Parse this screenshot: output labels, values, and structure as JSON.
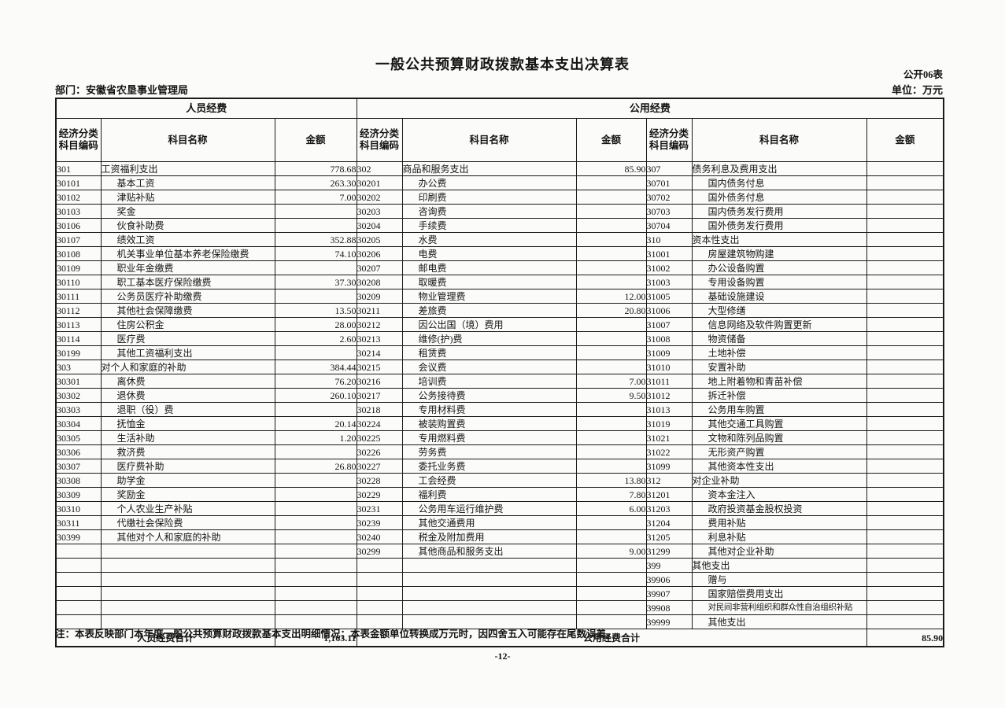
{
  "page": {
    "title": "一般公共预算财政拨款基本支出决算表",
    "form_no": "公开06表",
    "department": "部门：安徽省农垦事业管理局",
    "unit_label": "单位：万元",
    "note": "注：本表反映部门本年度一般公共预算财政拨款基本支出明细情况；本表金额单位转换成万元时，因四舍五入可能存在尾数误差。",
    "page_number": "-12-"
  },
  "table": {
    "group_headers": [
      "人员经费",
      "公用经费"
    ],
    "column_headers": [
      "经济分类\n科目编码",
      "科目名称",
      "金额"
    ],
    "rows": [
      [
        "301",
        "工资福利支出",
        "778.68",
        "302",
        "商品和服务支出",
        "85.90",
        "307",
        "债务利息及费用支出",
        ""
      ],
      [
        "30101",
        "基本工资",
        "263.30",
        "30201",
        "办公费",
        "",
        "30701",
        "国内债务付息",
        ""
      ],
      [
        "30102",
        "津贴补贴",
        "7.00",
        "30202",
        "印刷费",
        "",
        "30702",
        "国外债务付息",
        ""
      ],
      [
        "30103",
        "奖金",
        "",
        "30203",
        "咨询费",
        "",
        "30703",
        "国内债务发行费用",
        ""
      ],
      [
        "30106",
        "伙食补助费",
        "",
        "30204",
        "手续费",
        "",
        "30704",
        "国外债务发行费用",
        ""
      ],
      [
        "30107",
        "绩效工资",
        "352.88",
        "30205",
        "水费",
        "",
        "310",
        "资本性支出",
        ""
      ],
      [
        "30108",
        "机关事业单位基本养老保险缴费",
        "74.10",
        "30206",
        "电费",
        "",
        "31001",
        "房屋建筑物购建",
        ""
      ],
      [
        "30109",
        "职业年金缴费",
        "",
        "30207",
        "邮电费",
        "",
        "31002",
        "办公设备购置",
        ""
      ],
      [
        "30110",
        "职工基本医疗保险缴费",
        "37.30",
        "30208",
        "取暖费",
        "",
        "31003",
        "专用设备购置",
        ""
      ],
      [
        "30111",
        "公务员医疗补助缴费",
        "",
        "30209",
        "物业管理费",
        "12.00",
        "31005",
        "基础设施建设",
        ""
      ],
      [
        "30112",
        "其他社会保障缴费",
        "13.50",
        "30211",
        "差旅费",
        "20.80",
        "31006",
        "大型修缮",
        ""
      ],
      [
        "30113",
        "住房公积金",
        "28.00",
        "30212",
        "因公出国（境）费用",
        "",
        "31007",
        "信息网络及软件购置更新",
        ""
      ],
      [
        "30114",
        "医疗费",
        "2.60",
        "30213",
        "维修(护)费",
        "",
        "31008",
        "物资储备",
        ""
      ],
      [
        "30199",
        "其他工资福利支出",
        "",
        "30214",
        "租赁费",
        "",
        "31009",
        "土地补偿",
        ""
      ],
      [
        "303",
        "对个人和家庭的补助",
        "384.44",
        "30215",
        "会议费",
        "",
        "31010",
        "安置补助",
        ""
      ],
      [
        "30301",
        "离休费",
        "76.20",
        "30216",
        "培训费",
        "7.00",
        "31011",
        "地上附着物和青苗补偿",
        ""
      ],
      [
        "30302",
        "退休费",
        "260.10",
        "30217",
        "公务接待费",
        "9.50",
        "31012",
        "拆迁补偿",
        ""
      ],
      [
        "30303",
        "退职（役）费",
        "",
        "30218",
        "专用材料费",
        "",
        "31013",
        "公务用车购置",
        ""
      ],
      [
        "30304",
        "抚恤金",
        "20.14",
        "30224",
        "被装购置费",
        "",
        "31019",
        "其他交通工具购置",
        ""
      ],
      [
        "30305",
        "生活补助",
        "1.20",
        "30225",
        "专用燃料费",
        "",
        "31021",
        "文物和陈列品购置",
        ""
      ],
      [
        "30306",
        "救济费",
        "",
        "30226",
        "劳务费",
        "",
        "31022",
        "无形资产购置",
        ""
      ],
      [
        "30307",
        "医疗费补助",
        "26.80",
        "30227",
        "委托业务费",
        "",
        "31099",
        "其他资本性支出",
        ""
      ],
      [
        "30308",
        "助学金",
        "",
        "30228",
        "工会经费",
        "13.80",
        "312",
        "对企业补助",
        ""
      ],
      [
        "30309",
        "奖励金",
        "",
        "30229",
        "福利费",
        "7.80",
        "31201",
        "资本金注入",
        ""
      ],
      [
        "30310",
        "个人农业生产补贴",
        "",
        "30231",
        "公务用车运行维护费",
        "6.00",
        "31203",
        "政府投资基金股权投资",
        ""
      ],
      [
        "30311",
        "代缴社会保险费",
        "",
        "30239",
        "其他交通费用",
        "",
        "31204",
        "费用补贴",
        ""
      ],
      [
        "30399",
        "其他对个人和家庭的补助",
        "",
        "30240",
        "税金及附加费用",
        "",
        "31205",
        "利息补贴",
        ""
      ],
      [
        "",
        "",
        "",
        "30299",
        "其他商品和服务支出",
        "9.00",
        "31299",
        "其他对企业补助",
        ""
      ],
      [
        "",
        "",
        "",
        "",
        "",
        "",
        "399",
        "其他支出",
        ""
      ],
      [
        "",
        "",
        "",
        "",
        "",
        "",
        "39906",
        "赠与",
        ""
      ],
      [
        "",
        "",
        "",
        "",
        "",
        "",
        "39907",
        "国家赔偿费用支出",
        ""
      ],
      [
        "",
        "",
        "",
        "",
        "",
        "",
        "39908",
        "对民间非营利组织和群众性自治组织补贴",
        ""
      ],
      [
        "",
        "",
        "",
        "",
        "",
        "",
        "39999",
        "其他支出",
        ""
      ]
    ],
    "footer": {
      "left_label": "人员经费合计",
      "left_total": "1,163.11",
      "right_label": "公用经费合计",
      "right_total": "85.90"
    }
  }
}
